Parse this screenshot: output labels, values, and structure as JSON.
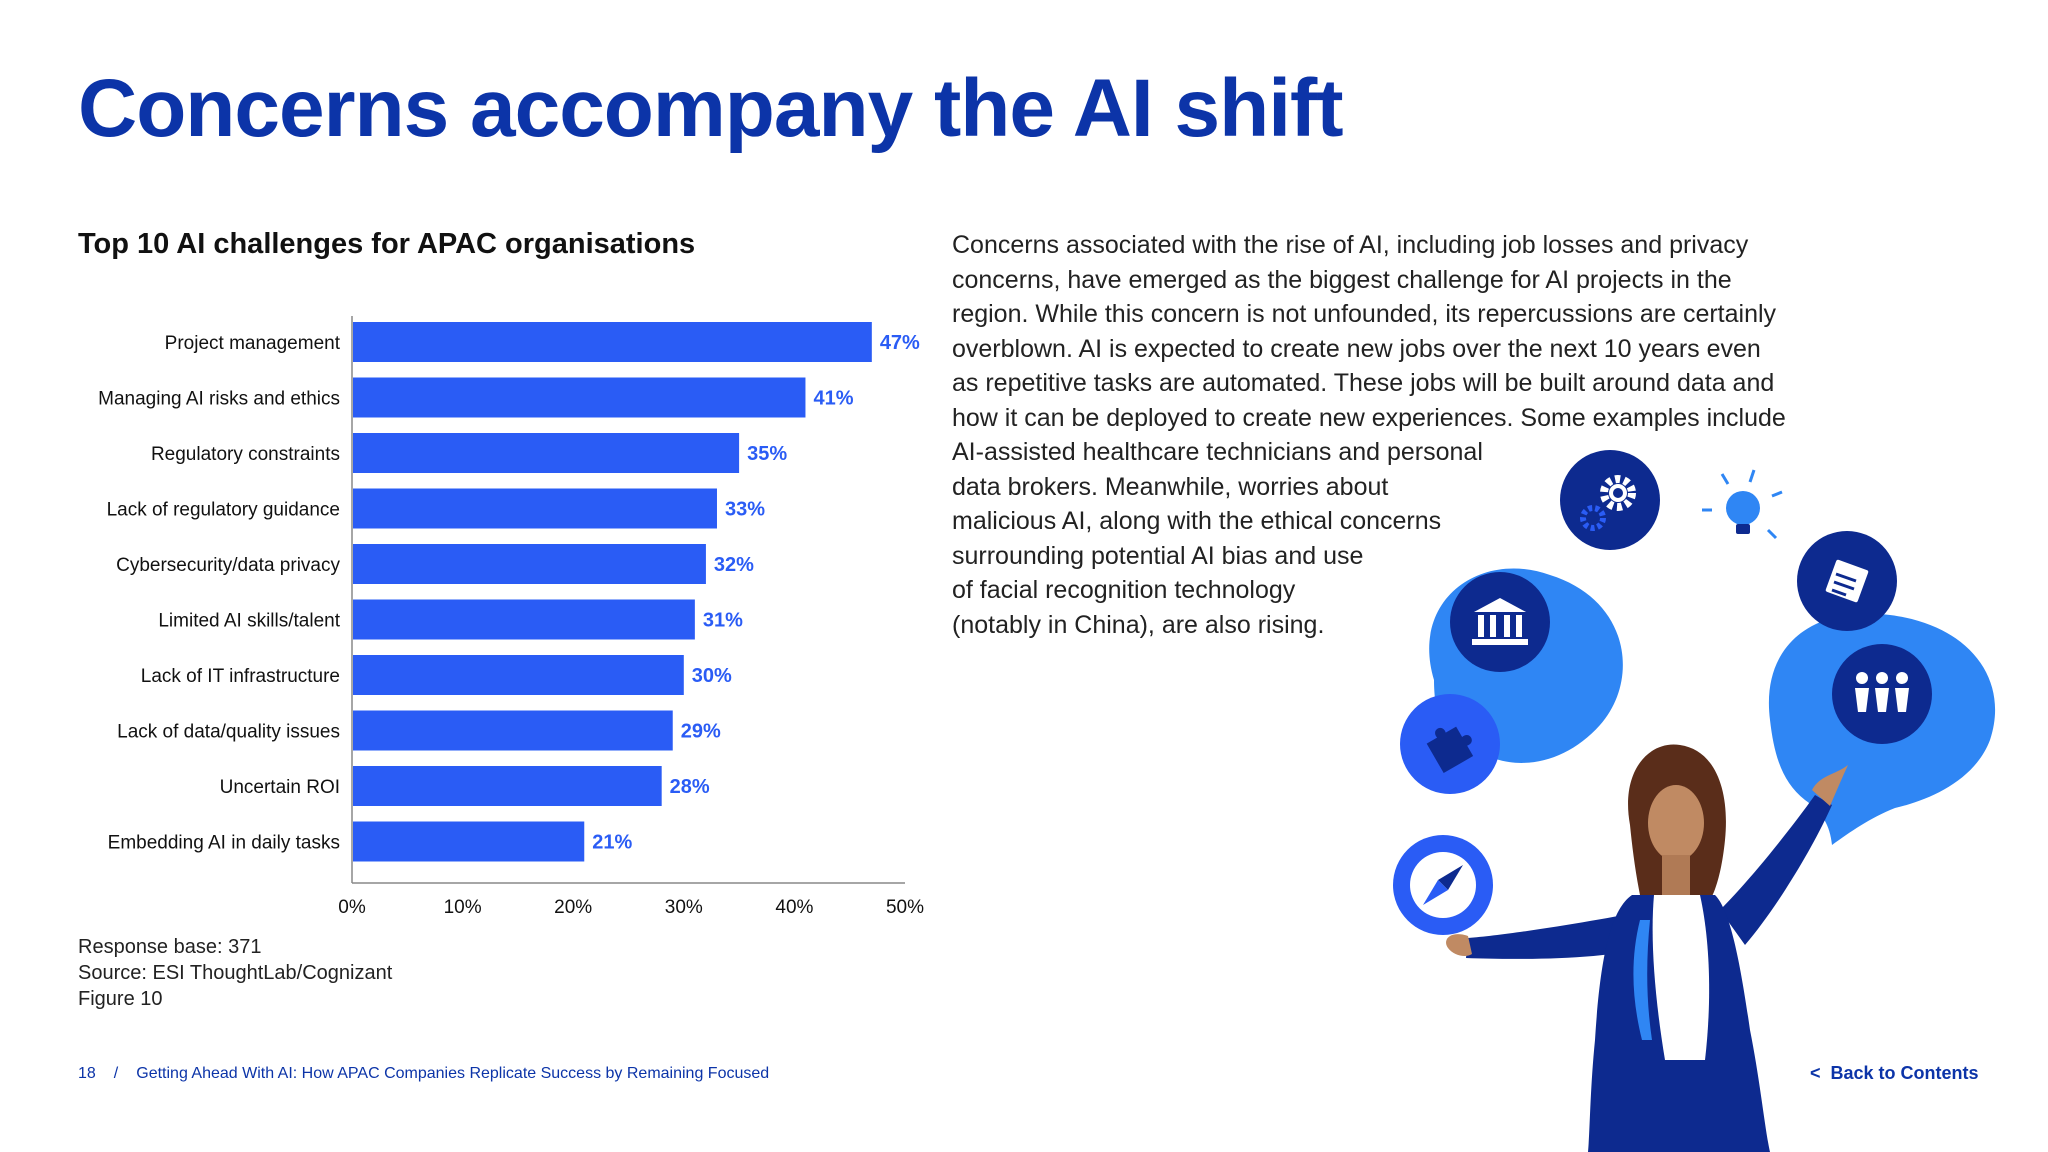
{
  "page_title": "Concerns accompany the AI shift",
  "chart_data": {
    "type": "bar",
    "orientation": "horizontal",
    "title": "Top 10 AI challenges for APAC organisations",
    "categories": [
      "Project management",
      "Managing AI risks and ethics",
      "Regulatory constraints",
      "Lack of regulatory guidance",
      "Cybersecurity/data privacy",
      "Limited AI skills/talent",
      "Lack of IT infrastructure",
      "Lack of data/quality issues",
      "Uncertain ROI",
      "Embedding AI in daily tasks"
    ],
    "values": [
      47,
      41,
      35,
      33,
      32,
      31,
      30,
      29,
      28,
      21
    ],
    "value_labels": [
      "47%",
      "41%",
      "35%",
      "33%",
      "32%",
      "31%",
      "30%",
      "29%",
      "28%",
      "21%"
    ],
    "xlim": [
      0,
      50
    ],
    "x_ticks": [
      0,
      10,
      20,
      30,
      40,
      50
    ],
    "x_tick_labels": [
      "0%",
      "10%",
      "20%",
      "30%",
      "40%",
      "50%"
    ],
    "xlabel": "",
    "ylabel": "",
    "grid": false,
    "bar_color": "#2a5cf5",
    "label_color": "#2a5cf5"
  },
  "chart_notes": [
    "Response base: 371",
    "Source: ESI ThoughtLab/Cognizant",
    "Figure 10"
  ],
  "body_lines": [
    "Concerns associated with the rise of AI, including job losses and privacy",
    "concerns, have emerged as the biggest challenge for AI projects in the",
    "region. While this concern is not unfounded, its repercussions are certainly",
    "overblown. AI is expected to create new jobs over the next 10 years even",
    "as repetitive tasks are automated. These jobs will be built around data and",
    "how it can be deployed to create new experiences. Some examples include",
    "AI-assisted healthcare technicians and personal",
    "data brokers. Meanwhile, worries about",
    "malicious AI, along with the ethical concerns",
    "surrounding potential AI bias and use",
    "of facial recognition technology",
    "(notably in China), are also rising."
  ],
  "footer": {
    "page_number": "18",
    "separator": "/",
    "doc_title": "Getting Ahead With AI: How APAC Companies Replicate Success by Remaining Focused",
    "back_chevron": "<",
    "back_label": "Back to Contents"
  },
  "illustration": {
    "icons": [
      "gear-icon",
      "lightbulb-icon",
      "bank-icon",
      "document-icon",
      "team-icon",
      "puzzle-icon",
      "compass-icon"
    ],
    "colors": {
      "navy": "#0d2a8f",
      "bright_blue": "#2f86f4",
      "mid_blue": "#2a5cf5",
      "light_blue": "#59a8ff"
    }
  },
  "theme": {
    "title_color": "#0c34a8",
    "text_color": "#222222"
  }
}
